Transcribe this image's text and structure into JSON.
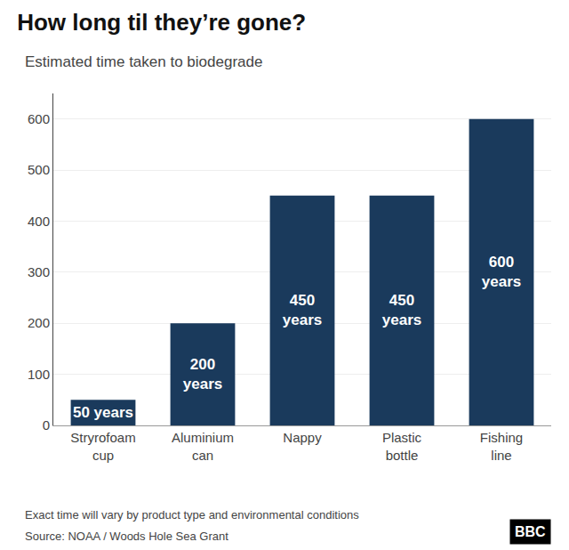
{
  "chart_data": {
    "type": "bar",
    "title": "How long til they’re gone?",
    "subtitle": "Estimated time taken to biodegrade",
    "categories": [
      "Stryrofoam\ncup",
      "Aluminium\ncan",
      "Nappy",
      "Plastic\nbottle",
      "Fishing\nline"
    ],
    "values": [
      50,
      200,
      450,
      450,
      600
    ],
    "data_labels": true,
    "value_labels": [
      "50 years",
      "200\nyears",
      "450\nyears",
      "450\nyears",
      "600\nyears"
    ],
    "color": "#1a3a5c",
    "ylim": [
      0,
      650
    ],
    "yticks": [
      0,
      100,
      200,
      300,
      400,
      500,
      600
    ],
    "grid": true,
    "footnote": "Exact time will vary by product type and environmental conditions",
    "source": "Source: NOAA / Woods Hole Sea Grant",
    "annotations": [
      "BBC"
    ]
  }
}
